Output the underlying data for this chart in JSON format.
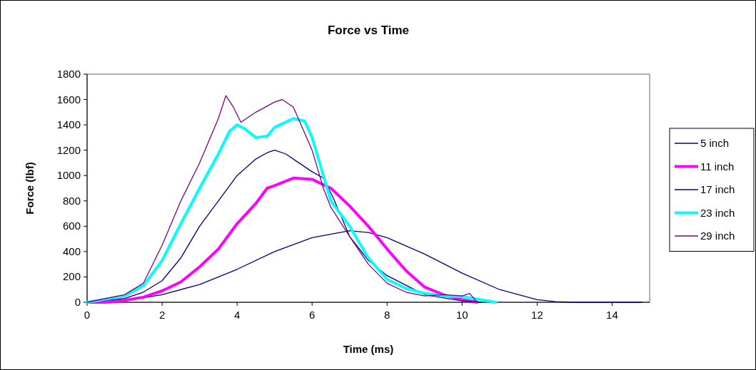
{
  "chart_data": {
    "type": "line",
    "title": "Force vs Time",
    "xlabel": "Time (ms)",
    "ylabel": "Force (lbf)",
    "xlim": [
      0,
      15
    ],
    "xticks": [
      0,
      2,
      4,
      6,
      8,
      10,
      12,
      14
    ],
    "ylim": [
      0,
      1800
    ],
    "yticks": [
      0,
      200,
      400,
      600,
      800,
      1000,
      1200,
      1400,
      1600,
      1800
    ],
    "grid": false,
    "legend": "right",
    "marker": "none",
    "line_style": "solid",
    "series": [
      {
        "name": "5 inch",
        "color": "#000080",
        "x": [
          0,
          0.5,
          1,
          2,
          3,
          4,
          5,
          6,
          7,
          7.5,
          8,
          9,
          10,
          11,
          12,
          12.5,
          13,
          14.8
        ],
        "values": [
          0,
          0,
          10,
          60,
          140,
          260,
          400,
          510,
          565,
          550,
          510,
          380,
          230,
          100,
          20,
          5,
          0,
          0
        ]
      },
      {
        "name": "11 inch",
        "color": "#ff00ff",
        "x": [
          0,
          0.5,
          1,
          1.5,
          2,
          2.5,
          3,
          3.5,
          4,
          4.5,
          4.8,
          5,
          5.5,
          6,
          6.5,
          7,
          7.5,
          8,
          8.5,
          9,
          9.5,
          10,
          10.4
        ],
        "values": [
          0,
          0,
          15,
          40,
          90,
          160,
          280,
          420,
          620,
          780,
          900,
          920,
          980,
          970,
          900,
          760,
          600,
          420,
          250,
          120,
          60,
          20,
          0
        ]
      },
      {
        "name": "17 inch",
        "color": "#000080",
        "x": [
          0,
          1,
          1.5,
          2,
          2.5,
          3,
          3.5,
          4,
          4.5,
          4.8,
          5,
          5.3,
          5.5,
          6,
          6.3,
          6.57,
          7,
          7.5,
          8,
          9,
          10,
          10.5
        ],
        "values": [
          0,
          30,
          80,
          170,
          350,
          600,
          800,
          1000,
          1130,
          1180,
          1200,
          1170,
          1130,
          1030,
          980,
          820,
          520,
          330,
          210,
          60,
          10,
          0
        ]
      },
      {
        "name": "23 inch",
        "color": "#00ffff",
        "x": [
          0,
          1,
          1.5,
          2,
          2.5,
          3,
          3.5,
          3.8,
          4,
          4.2,
          4.5,
          4.8,
          5,
          5.5,
          5.8,
          6,
          6.3,
          6.5,
          7,
          7.5,
          8,
          8.5,
          9,
          9.5,
          10,
          10.5,
          10.9
        ],
        "values": [
          0,
          50,
          130,
          330,
          620,
          900,
          1170,
          1350,
          1400,
          1370,
          1300,
          1310,
          1380,
          1450,
          1430,
          1300,
          1000,
          800,
          600,
          350,
          180,
          110,
          70,
          50,
          45,
          20,
          0
        ]
      },
      {
        "name": "29 inch",
        "color": "#800080",
        "x": [
          0,
          1,
          1.5,
          2,
          2.5,
          3,
          3.5,
          3.7,
          3.9,
          4.1,
          4.5,
          5,
          5.2,
          5.5,
          6,
          6.3,
          6.5,
          7,
          7.5,
          8,
          8.5,
          9,
          9.5,
          10,
          10.2,
          10.4
        ],
        "values": [
          0,
          60,
          150,
          450,
          800,
          1100,
          1450,
          1630,
          1540,
          1420,
          1500,
          1580,
          1600,
          1540,
          1200,
          900,
          750,
          520,
          300,
          150,
          80,
          50,
          60,
          50,
          70,
          0
        ]
      }
    ]
  }
}
